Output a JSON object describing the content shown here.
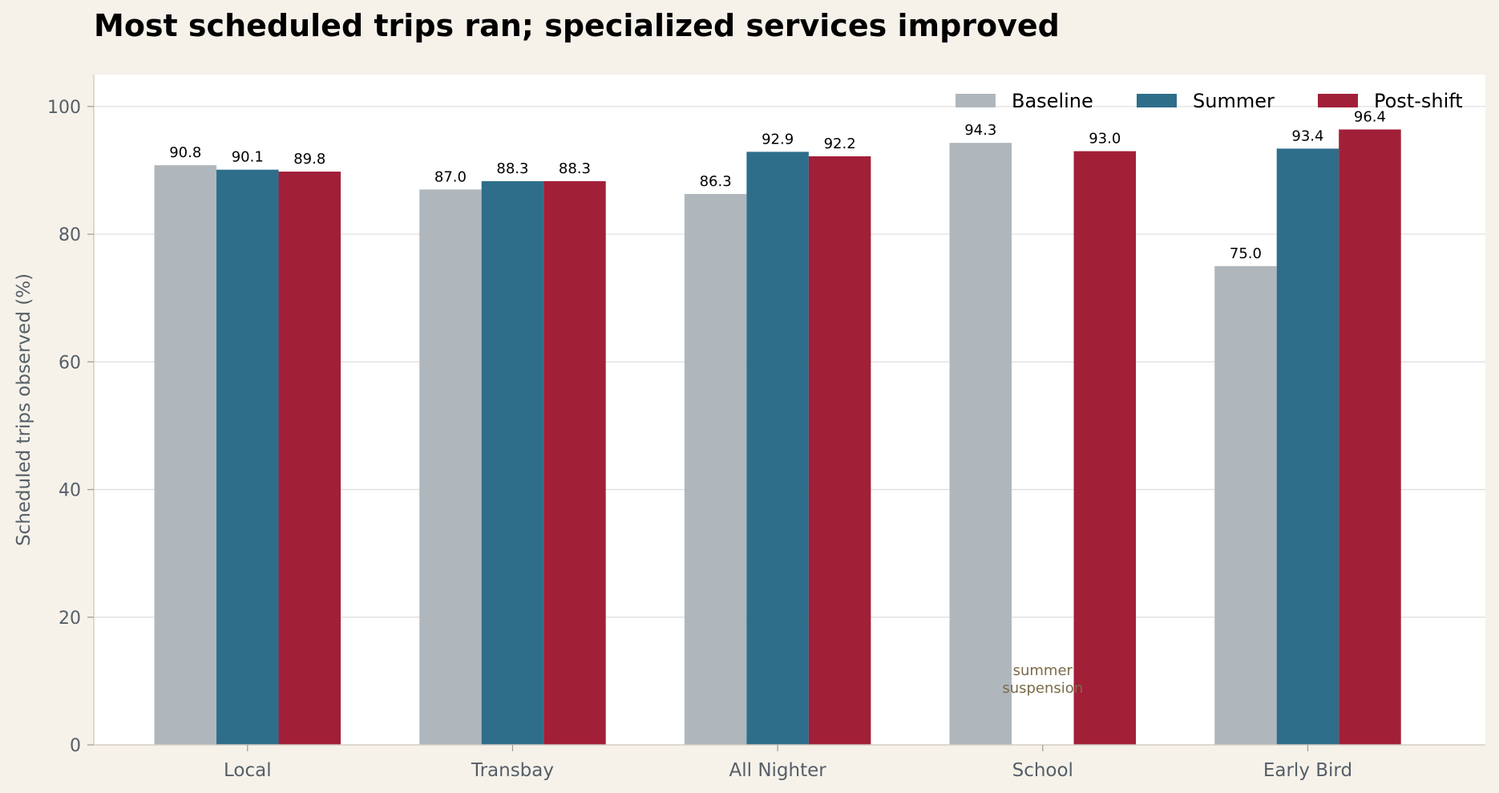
{
  "chart_data": {
    "type": "bar",
    "title": "Most scheduled trips ran; specialized services improved",
    "xlabel": "",
    "ylabel": "Scheduled trips observed (%)",
    "ylim": [
      0,
      105
    ],
    "yticks": [
      0,
      20,
      40,
      60,
      80,
      100
    ],
    "grid": true,
    "legend_position": "top-right",
    "categories": [
      "Local",
      "Transbay",
      "All Nighter",
      "School",
      "Early Bird"
    ],
    "series": [
      {
        "name": "Baseline",
        "color": "#afb7bd",
        "values": [
          90.8,
          87.0,
          86.3,
          94.3,
          75.0
        ],
        "labels": [
          "90.8",
          "87.0",
          "86.3",
          "94.3",
          "75.0"
        ]
      },
      {
        "name": "Summer",
        "color": "#2e6e8a",
        "values": [
          90.1,
          88.3,
          92.9,
          null,
          93.4
        ],
        "labels": [
          "90.1",
          "88.3",
          "92.9",
          "",
          "93.4"
        ]
      },
      {
        "name": "Post-shift",
        "color": "#a21f38",
        "values": [
          89.8,
          88.3,
          92.2,
          93.0,
          96.4
        ],
        "labels": [
          "89.8",
          "88.3",
          "92.2",
          "93.0",
          "96.4"
        ]
      }
    ],
    "annotations": [
      {
        "category": "School",
        "series": "Summer",
        "lines": [
          "summer",
          "suspension"
        ]
      }
    ]
  }
}
